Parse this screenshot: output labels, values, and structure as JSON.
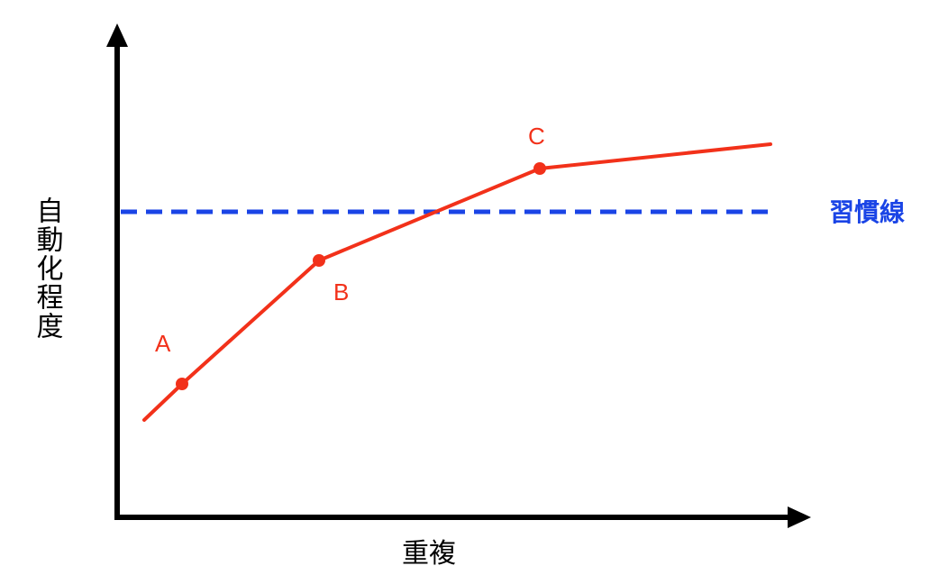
{
  "diagram": {
    "y_axis_label": "自動化程度",
    "x_axis_label": "重複",
    "habit_line_label": "習慣線",
    "points": [
      {
        "label": "A"
      },
      {
        "label": "B"
      },
      {
        "label": "C"
      }
    ],
    "colors": {
      "curve": "#f2311a",
      "habit_line": "#1a44e6",
      "axis": "#000000"
    }
  }
}
